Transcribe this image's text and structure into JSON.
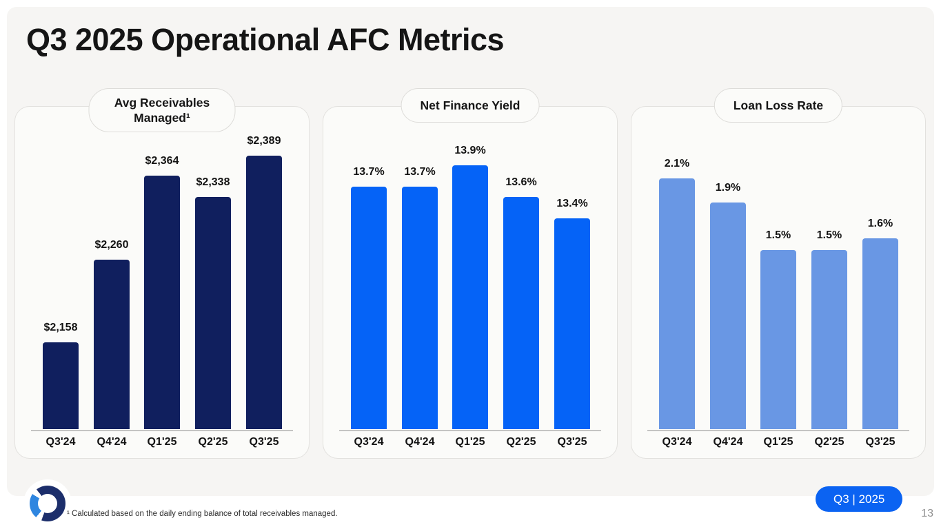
{
  "slide": {
    "title": "Q3 2025 Operational AFC Metrics",
    "footnote": "¹ Calculated based on the daily ending balance of total receivables managed.",
    "period_badge": "Q3 | 2025",
    "page_number": "13"
  },
  "colors": {
    "panel_bg": "#f6f5f3",
    "card_bg": "#fbfbf9",
    "card_border": "#e2e1de",
    "navy_bar": "#101f5e",
    "blue_bar": "#0563f7",
    "light_blue_bar": "#6997e4",
    "badge_blue": "#0b63f2",
    "axis_gray": "#8c8c8c",
    "logo_navy": "#1c2e6b",
    "logo_blue": "#2f86e0"
  },
  "chart_data": [
    {
      "type": "bar",
      "title": "Avg Receivables Managed¹",
      "categories": [
        "Q3'24",
        "Q4'24",
        "Q1'25",
        "Q2'25",
        "Q3'25"
      ],
      "values": [
        2158,
        2260,
        2364,
        2338,
        2389
      ],
      "labels": [
        "$2,158",
        "$2,260",
        "$2,364",
        "$2,338",
        "$2,389"
      ],
      "bar_color": "#101f5e",
      "ylim": [
        2050,
        2389
      ],
      "grid": false,
      "legend": false
    },
    {
      "type": "bar",
      "title": "Net Finance Yield",
      "categories": [
        "Q3'24",
        "Q4'24",
        "Q1'25",
        "Q2'25",
        "Q3'25"
      ],
      "values": [
        13.7,
        13.7,
        13.9,
        13.6,
        13.4
      ],
      "labels": [
        "13.7%",
        "13.7%",
        "13.9%",
        "13.6%",
        "13.4%"
      ],
      "bar_color": "#0563f7",
      "ylim": [
        11.4,
        13.9
      ],
      "grid": false,
      "legend": false
    },
    {
      "type": "bar",
      "title": "Loan Loss Rate",
      "categories": [
        "Q3'24",
        "Q4'24",
        "Q1'25",
        "Q2'25",
        "Q3'25"
      ],
      "values": [
        2.1,
        1.9,
        1.5,
        1.5,
        1.6
      ],
      "labels": [
        "2.1%",
        "1.9%",
        "1.5%",
        "1.5%",
        "1.6%"
      ],
      "bar_color": "#6997e4",
      "ylim": [
        0,
        2.1
      ],
      "grid": false,
      "legend": false
    }
  ]
}
